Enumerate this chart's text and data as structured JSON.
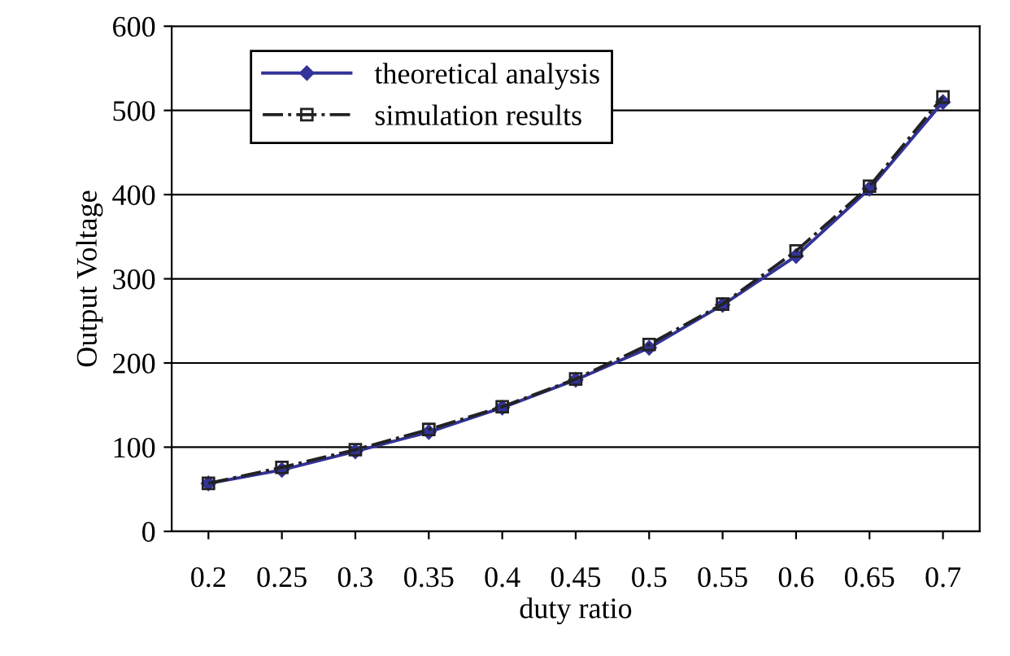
{
  "chart_data": {
    "type": "line",
    "xlabel": "duty ratio",
    "ylabel": "Output Voltage",
    "categories": [
      "0.2",
      "0.25",
      "0.3",
      "0.35",
      "0.4",
      "0.45",
      "0.5",
      "0.55",
      "0.6",
      "0.65",
      "0.7"
    ],
    "series": [
      {
        "name": "theoretical analysis",
        "color": "#333399",
        "marker": "diamond",
        "line_style": "solid",
        "values": [
          57,
          73,
          95,
          118,
          147,
          180,
          218,
          269,
          327,
          407,
          510
        ]
      },
      {
        "name": "simulation results",
        "color": "#222222",
        "marker": "square",
        "line_style": "dashed",
        "values": [
          57,
          76,
          97,
          121,
          148,
          181,
          222,
          270,
          333,
          410,
          516
        ]
      }
    ],
    "ylim": [
      0,
      600
    ],
    "yticks": [
      0,
      100,
      200,
      300,
      400,
      500,
      600
    ],
    "grid": "y",
    "legend": "top left"
  }
}
